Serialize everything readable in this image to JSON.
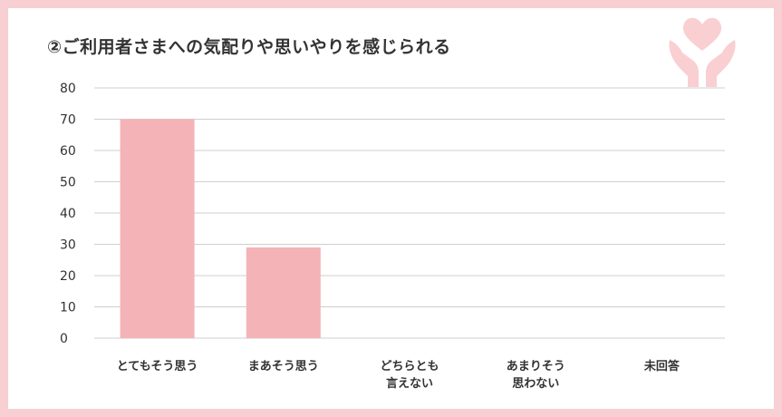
{
  "chart_data": {
    "type": "bar",
    "title": "②ご利用者さまへの気配りや思いやりを感じられる",
    "categories": [
      [
        "とてもそう思う"
      ],
      [
        "まあそう思う"
      ],
      [
        "どちらとも",
        "言えない"
      ],
      [
        "あまりそう",
        "思わない"
      ],
      [
        "未回答"
      ]
    ],
    "values": [
      70,
      29,
      0,
      0,
      0
    ],
    "ylim": [
      0,
      80
    ],
    "yticks": [
      "80",
      "70",
      "60",
      "50",
      "40",
      "30",
      "20",
      "10",
      "0"
    ],
    "grid": true,
    "colors": {
      "bar": "#f4b3b6",
      "grid": "#cfcfcf",
      "frame": "#f8cfd2",
      "deco": "#f9cfd2"
    }
  }
}
